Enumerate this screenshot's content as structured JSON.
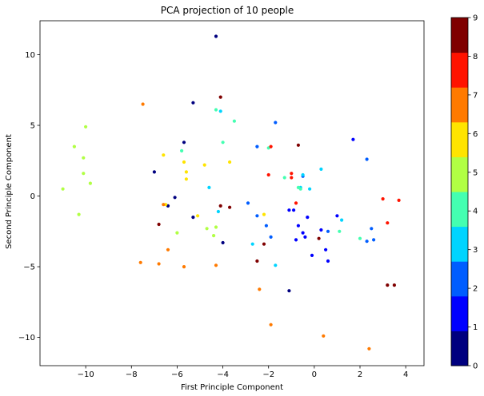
{
  "chart_data": {
    "type": "scatter",
    "title": "PCA projection of 10 people",
    "xlabel": "First Principle Component",
    "ylabel": "Second Principle Component",
    "xlim": [
      -12,
      4.8
    ],
    "ylim": [
      -12,
      12.4
    ],
    "xticks": [
      -10,
      -8,
      -6,
      -4,
      -2,
      0,
      2,
      4
    ],
    "xtick_labels": [
      "−10",
      "−8",
      "−6",
      "−4",
      "−2",
      "0",
      "2",
      "4"
    ],
    "yticks": [
      -10,
      -5,
      0,
      5,
      10
    ],
    "ytick_labels": [
      "−10",
      "−5",
      "0",
      "5",
      "10"
    ],
    "colorbar": {
      "colormap": "jet",
      "range": [
        0,
        9
      ],
      "ticks": [
        0,
        1,
        2,
        3,
        4,
        5,
        6,
        7,
        8,
        9
      ],
      "tick_labels": [
        "0",
        "1",
        "2",
        "3",
        "4",
        "5",
        "6",
        "7",
        "8",
        "9"
      ],
      "colors": [
        "#00007f",
        "#0000ff",
        "#005dff",
        "#00d4ff",
        "#44ffb1",
        "#b1ff44",
        "#ffe400",
        "#ff7a00",
        "#ff1300",
        "#7f0000"
      ]
    },
    "series": [
      {
        "label": 0,
        "color": "#00007f",
        "points": [
          [
            -4.3,
            11.3
          ],
          [
            -5.3,
            6.6
          ],
          [
            -5.7,
            3.8
          ],
          [
            -7.0,
            1.7
          ],
          [
            -6.1,
            -0.1
          ],
          [
            -6.4,
            -0.7
          ],
          [
            -5.3,
            -1.5
          ],
          [
            -4.0,
            -3.3
          ],
          [
            -1.1,
            -6.7
          ]
        ]
      },
      {
        "label": 1,
        "color": "#0000ff",
        "points": [
          [
            -1.1,
            -1.0
          ],
          [
            -0.9,
            -1.0
          ],
          [
            -0.7,
            -2.1
          ],
          [
            -0.5,
            -2.6
          ],
          [
            -0.3,
            -1.5
          ],
          [
            -0.8,
            -3.1
          ],
          [
            -0.4,
            -2.9
          ],
          [
            -0.1,
            -4.2
          ],
          [
            0.3,
            -2.4
          ],
          [
            0.6,
            -4.6
          ],
          [
            1.0,
            -1.4
          ],
          [
            1.7,
            4.0
          ],
          [
            0.5,
            -3.8
          ]
        ]
      },
      {
        "label": 2,
        "color": "#005dff",
        "points": [
          [
            -1.7,
            5.2
          ],
          [
            -2.5,
            3.5
          ],
          [
            -0.5,
            1.4
          ],
          [
            -2.5,
            -1.4
          ],
          [
            -2.1,
            -2.1
          ],
          [
            -2.9,
            -0.5
          ],
          [
            -1.9,
            -2.9
          ],
          [
            2.3,
            2.6
          ],
          [
            2.5,
            -2.3
          ],
          [
            2.3,
            -3.2
          ],
          [
            2.6,
            -3.1
          ],
          [
            0.6,
            -2.5
          ]
        ]
      },
      {
        "label": 3,
        "color": "#00d4ff",
        "points": [
          [
            -4.1,
            6.0
          ],
          [
            -4.2,
            -1.1
          ],
          [
            -4.6,
            0.6
          ],
          [
            -2.7,
            -3.4
          ],
          [
            -1.7,
            -4.9
          ],
          [
            0.3,
            1.9
          ],
          [
            1.2,
            -1.7
          ],
          [
            -0.5,
            1.5
          ],
          [
            -0.6,
            0.6
          ],
          [
            -0.2,
            0.5
          ]
        ]
      },
      {
        "label": 4,
        "color": "#44ffb1",
        "points": [
          [
            -4.3,
            6.1
          ],
          [
            -3.5,
            5.3
          ],
          [
            -4.0,
            3.8
          ],
          [
            -5.8,
            3.2
          ],
          [
            -2.0,
            3.4
          ],
          [
            -1.3,
            1.3
          ],
          [
            -0.7,
            0.6
          ],
          [
            -0.6,
            0.5
          ],
          [
            1.1,
            -2.5
          ],
          [
            2.0,
            -3.0
          ]
        ]
      },
      {
        "label": 5,
        "color": "#b1ff44",
        "points": [
          [
            -10.0,
            4.9
          ],
          [
            -10.5,
            3.5
          ],
          [
            -10.1,
            2.7
          ],
          [
            -10.1,
            1.6
          ],
          [
            -9.8,
            0.9
          ],
          [
            -11.0,
            0.5
          ],
          [
            -10.3,
            -1.3
          ],
          [
            -6.0,
            -2.6
          ],
          [
            -4.3,
            -2.2
          ],
          [
            -4.7,
            -2.3
          ],
          [
            -4.4,
            -2.8
          ]
        ]
      },
      {
        "label": 6,
        "color": "#ffe400",
        "points": [
          [
            -6.6,
            2.9
          ],
          [
            -5.7,
            2.4
          ],
          [
            -5.6,
            1.7
          ],
          [
            -5.6,
            1.2
          ],
          [
            -3.7,
            2.4
          ],
          [
            -4.8,
            2.2
          ],
          [
            -6.5,
            -0.6
          ],
          [
            -5.1,
            -1.4
          ],
          [
            -2.2,
            -1.3
          ]
        ]
      },
      {
        "label": 7,
        "color": "#ff7a00",
        "points": [
          [
            -7.5,
            6.5
          ],
          [
            -6.4,
            -3.8
          ],
          [
            -7.6,
            -4.7
          ],
          [
            -6.8,
            -4.8
          ],
          [
            -5.7,
            -5.0
          ],
          [
            -4.3,
            -4.9
          ],
          [
            -2.4,
            -6.6
          ],
          [
            -1.9,
            -9.1
          ],
          [
            0.4,
            -9.9
          ],
          [
            2.4,
            -10.8
          ],
          [
            -6.6,
            -0.6
          ]
        ]
      },
      {
        "label": 8,
        "color": "#ff1300",
        "points": [
          [
            -1.9,
            3.5
          ],
          [
            -2.0,
            1.5
          ],
          [
            -1.0,
            1.6
          ],
          [
            -1.0,
            1.3
          ],
          [
            -0.8,
            -0.5
          ],
          [
            3.0,
            -0.2
          ],
          [
            3.7,
            -0.3
          ],
          [
            3.2,
            -1.9
          ]
        ]
      },
      {
        "label": 9,
        "color": "#7f0000",
        "points": [
          [
            -4.1,
            7.0
          ],
          [
            -0.7,
            3.6
          ],
          [
            -4.1,
            -0.7
          ],
          [
            -3.7,
            -0.8
          ],
          [
            -6.8,
            -2.0
          ],
          [
            -2.2,
            -3.4
          ],
          [
            -2.5,
            -4.6
          ],
          [
            0.2,
            -3.0
          ],
          [
            3.2,
            -6.3
          ],
          [
            3.5,
            -6.3
          ]
        ]
      }
    ]
  }
}
